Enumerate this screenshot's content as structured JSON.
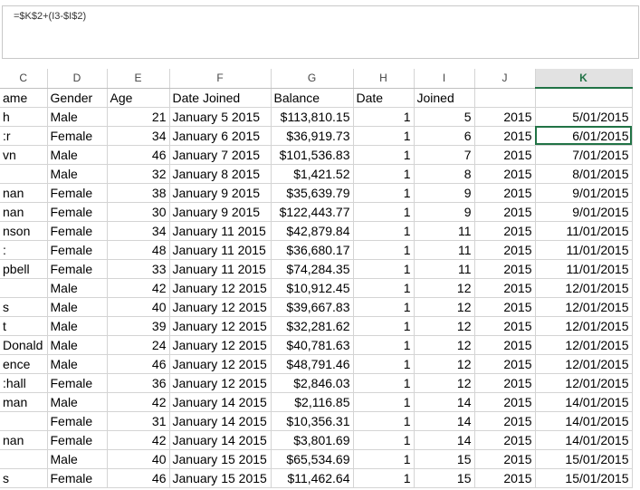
{
  "formula_bar": {
    "formula": "=$K$2+(I3-$I$2)"
  },
  "columns": [
    "C",
    "D",
    "E",
    "F",
    "G",
    "H",
    "I",
    "J",
    "K"
  ],
  "active_column": "K",
  "header_row": [
    "ame",
    "Gender",
    "Age",
    "Date Joined",
    "Balance",
    "Date",
    "Joined",
    "",
    ""
  ],
  "rows": [
    [
      "h",
      "Male",
      "21",
      "January 5 2015",
      "$113,810.15",
      "1",
      "5",
      "2015",
      "5/01/2015"
    ],
    [
      ":r",
      "Female",
      "34",
      "January 6 2015",
      "$36,919.73",
      "1",
      "6",
      "2015",
      "6/01/2015"
    ],
    [
      "vn",
      "Male",
      "46",
      "January 7 2015",
      "$101,536.83",
      "1",
      "7",
      "2015",
      "7/01/2015"
    ],
    [
      "",
      "Male",
      "32",
      "January 8 2015",
      "$1,421.52",
      "1",
      "8",
      "2015",
      "8/01/2015"
    ],
    [
      "nan",
      "Female",
      "38",
      "January 9 2015",
      "$35,639.79",
      "1",
      "9",
      "2015",
      "9/01/2015"
    ],
    [
      "nan",
      "Female",
      "30",
      "January 9 2015",
      "$122,443.77",
      "1",
      "9",
      "2015",
      "9/01/2015"
    ],
    [
      "nson",
      "Female",
      "34",
      "January 11 2015",
      "$42,879.84",
      "1",
      "11",
      "2015",
      "11/01/2015"
    ],
    [
      ":",
      "Female",
      "48",
      "January 11 2015",
      "$36,680.17",
      "1",
      "11",
      "2015",
      "11/01/2015"
    ],
    [
      "pbell",
      "Female",
      "33",
      "January 11 2015",
      "$74,284.35",
      "1",
      "11",
      "2015",
      "11/01/2015"
    ],
    [
      "",
      "Male",
      "42",
      "January 12 2015",
      "$10,912.45",
      "1",
      "12",
      "2015",
      "12/01/2015"
    ],
    [
      "s",
      "Male",
      "40",
      "January 12 2015",
      "$39,667.83",
      "1",
      "12",
      "2015",
      "12/01/2015"
    ],
    [
      "t",
      "Male",
      "39",
      "January 12 2015",
      "$32,281.62",
      "1",
      "12",
      "2015",
      "12/01/2015"
    ],
    [
      "Donald",
      "Male",
      "24",
      "January 12 2015",
      "$40,781.63",
      "1",
      "12",
      "2015",
      "12/01/2015"
    ],
    [
      "ence",
      "Male",
      "46",
      "January 12 2015",
      "$48,791.46",
      "1",
      "12",
      "2015",
      "12/01/2015"
    ],
    [
      ":hall",
      "Female",
      "36",
      "January 12 2015",
      "$2,846.03",
      "1",
      "12",
      "2015",
      "12/01/2015"
    ],
    [
      "man",
      "Male",
      "42",
      "January 14 2015",
      "$2,116.85",
      "1",
      "14",
      "2015",
      "14/01/2015"
    ],
    [
      "",
      "Female",
      "31",
      "January 14 2015",
      "$10,356.31",
      "1",
      "14",
      "2015",
      "14/01/2015"
    ],
    [
      "nan",
      "Female",
      "42",
      "January 14 2015",
      "$3,801.69",
      "1",
      "14",
      "2015",
      "14/01/2015"
    ],
    [
      "",
      "Male",
      "40",
      "January 15 2015",
      "$65,534.69",
      "1",
      "15",
      "2015",
      "15/01/2015"
    ],
    [
      "s",
      "Female",
      "46",
      "January 15 2015",
      "$11,462.64",
      "1",
      "15",
      "2015",
      "15/01/2015"
    ]
  ],
  "selected_cell": {
    "row_index": 1,
    "col_index": 8
  }
}
